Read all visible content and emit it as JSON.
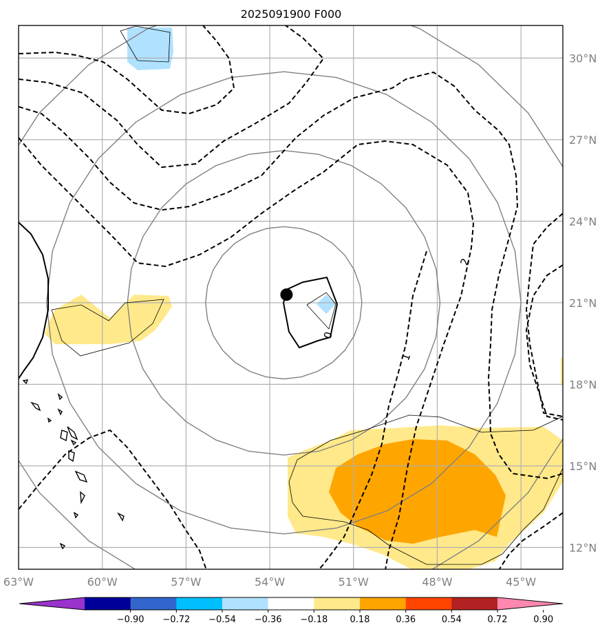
{
  "chart_data": {
    "type": "map",
    "title": "2025091900 F000",
    "lon_range": [
      -63,
      -43.5
    ],
    "lat_range": [
      11.2,
      31.2
    ],
    "x_ticks": [
      {
        "value": -63,
        "label": "63°W"
      },
      {
        "value": -60,
        "label": "60°W"
      },
      {
        "value": -57,
        "label": "57°W"
      },
      {
        "value": -54,
        "label": "54°W"
      },
      {
        "value": -51,
        "label": "51°W"
      },
      {
        "value": -48,
        "label": "48°W"
      },
      {
        "value": -45,
        "label": "45°W"
      }
    ],
    "y_ticks": [
      {
        "value": 30,
        "label": "30°N"
      },
      {
        "value": 27,
        "label": "27°N"
      },
      {
        "value": 24,
        "label": "24°N"
      },
      {
        "value": 21,
        "label": "21°N"
      },
      {
        "value": 18,
        "label": "18°N"
      },
      {
        "value": 15,
        "label": "15°N"
      },
      {
        "value": 12,
        "label": "12°N"
      }
    ],
    "grid": true,
    "center_marker": {
      "lon": -53.4,
      "lat": 21.3
    },
    "range_rings": [
      {
        "lon": -53.5,
        "lat": 21.0,
        "radius_deg": 2.8
      },
      {
        "lon": -53.5,
        "lat": 21.0,
        "radius_deg": 5.6
      },
      {
        "lon": -53.5,
        "lat": 21.0,
        "radius_deg": 8.5
      },
      {
        "lon": -53.5,
        "lat": 21.0,
        "radius_deg": 11.2
      }
    ],
    "contour_labels": [
      {
        "text": "0",
        "lon": -51.9,
        "lat": 19.8
      },
      {
        "text": "1",
        "lon": -49.1,
        "lat": 19.0
      },
      {
        "text": "2",
        "lon": -47.0,
        "lat": 22.5
      }
    ],
    "colorbar": {
      "colors": [
        "#9933cc",
        "#000099",
        "#3366cc",
        "#00bfff",
        "#b0e2ff",
        "#ffffff",
        "#ffe98a",
        "#ffa500",
        "#ff4500",
        "#b22222",
        "#ff88b0"
      ],
      "tick_labels": [
        "−0.90",
        "−0.72",
        "−0.54",
        "−0.36",
        "−0.18",
        "0.18",
        "0.36",
        "0.54",
        "0.72",
        "0.90"
      ],
      "extend": "both"
    }
  }
}
